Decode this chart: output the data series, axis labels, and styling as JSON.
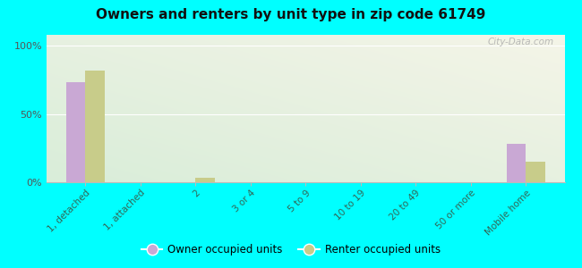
{
  "title": "Owners and renters by unit type in zip code 61749",
  "categories": [
    "1, detached",
    "1, attached",
    "2",
    "3 or 4",
    "5 to 9",
    "10 to 19",
    "20 to 49",
    "50 or more",
    "Mobile home"
  ],
  "owner_values": [
    73,
    0,
    0,
    0,
    0,
    0,
    0,
    0,
    28
  ],
  "renter_values": [
    82,
    0,
    3,
    0,
    0,
    0,
    0,
    0,
    15
  ],
  "owner_color": "#c9a8d4",
  "renter_color": "#c8cc8a",
  "background_color": "#00ffff",
  "ylabel_ticks": [
    "0%",
    "50%",
    "100%"
  ],
  "yticks": [
    0,
    50,
    100
  ],
  "ylim": [
    0,
    108
  ],
  "bar_width": 0.35,
  "watermark": "City-Data.com",
  "legend_labels": [
    "Owner occupied units",
    "Renter occupied units"
  ]
}
